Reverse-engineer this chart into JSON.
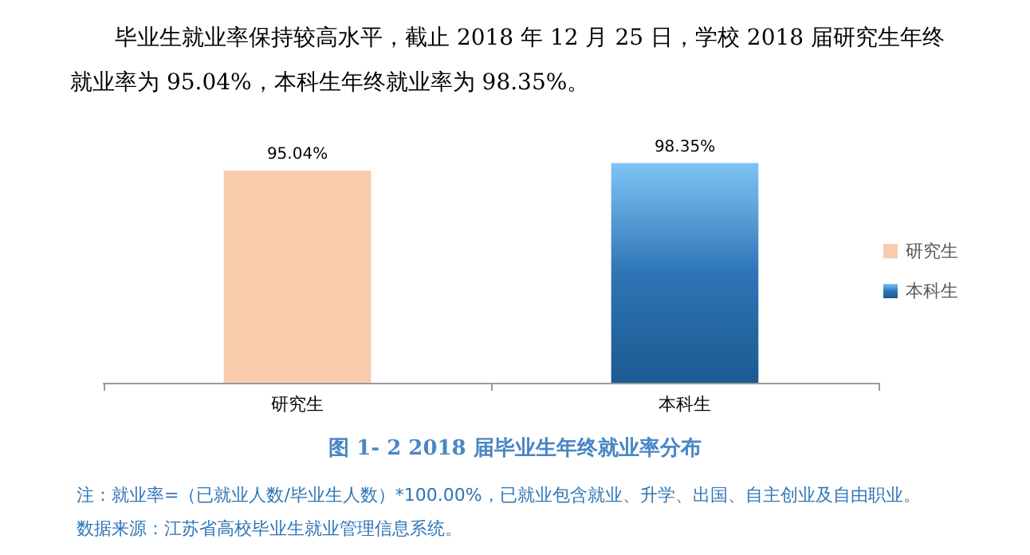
{
  "chart_data": {
    "type": "bar",
    "subtitle": "毕业生就业率保持较高水平，截止 2018 年 12 月 25 日，学校 2018 届研究生年终就业率为 95.04%，本科生年终就业率为 98.35%。",
    "title": "图 1- 2    2018 届毕业生年终就业率分布",
    "categories": [
      "研究生",
      "本科生"
    ],
    "series": [
      {
        "name": "研究生",
        "color": "#f8cbad",
        "values": [
          95.04,
          null
        ],
        "value_labels": [
          "95.04%",
          null
        ]
      },
      {
        "name": "本科生",
        "color": "#2e75b6",
        "values": [
          null,
          98.35
        ],
        "value_labels": [
          null,
          "98.35%"
        ]
      }
    ],
    "stacked": true,
    "legend": "right",
    "annotations": [
      "注：就业率=（已就业人数/毕业生人数）*100.00%，已就业包含就业、升学、出国、自主创业及自由职业。",
      "数据来源：江苏省高校毕业生就业管理信息系统。"
    ]
  }
}
